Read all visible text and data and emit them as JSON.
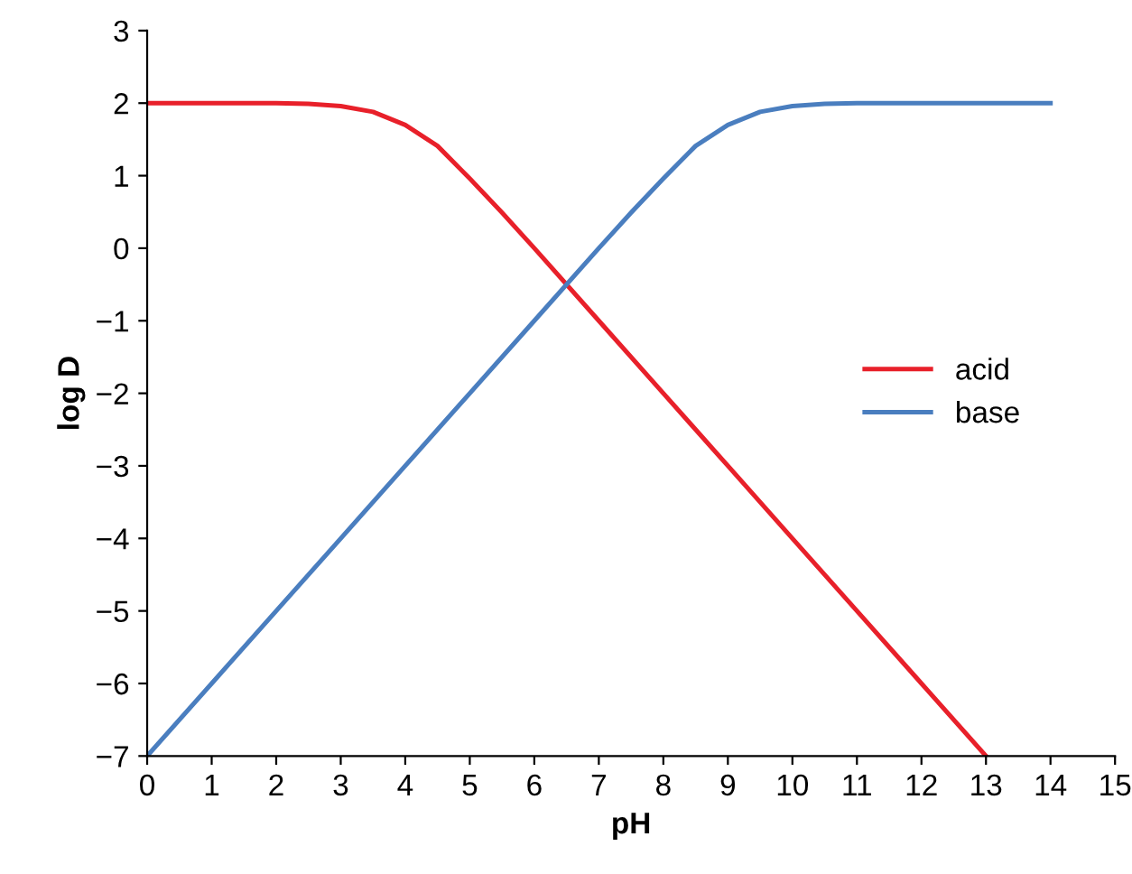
{
  "chart_data": {
    "type": "line",
    "xlabel": "pH",
    "ylabel": "log D",
    "series": [
      {
        "name": "acid",
        "color": "#e8202a",
        "x": [
          0,
          1,
          2,
          2.5,
          3,
          3.5,
          4,
          4.5,
          5,
          5.5,
          6,
          7,
          8,
          9,
          10,
          11,
          12,
          13
        ],
        "values": [
          2,
          2,
          2,
          1.99,
          1.96,
          1.88,
          1.7,
          1.41,
          0.96,
          0.49,
          0,
          -1,
          -2,
          -3,
          -4,
          -5,
          -6,
          -7
        ]
      },
      {
        "name": "base",
        "color": "#4a7ebf",
        "x": [
          0,
          1,
          2,
          3,
          4,
          5,
          6,
          7,
          7.5,
          8,
          8.5,
          9,
          9.5,
          10,
          10.5,
          11,
          12,
          13,
          14
        ],
        "values": [
          -7,
          -6,
          -5,
          -4,
          -3,
          -2,
          -1,
          0,
          0.49,
          0.96,
          1.41,
          1.7,
          1.88,
          1.96,
          1.99,
          2,
          2,
          2,
          2
        ]
      }
    ],
    "xlim": [
      0,
      15
    ],
    "xticks": [
      0,
      1,
      2,
      3,
      4,
      5,
      6,
      7,
      8,
      9,
      10,
      11,
      12,
      13,
      14,
      15
    ],
    "ylim": [
      -7,
      3
    ],
    "yticks": [
      {
        "value": -7,
        "label": "−7"
      },
      {
        "value": -6,
        "label": "−6"
      },
      {
        "value": -5,
        "label": "−5"
      },
      {
        "value": -4,
        "label": "−4"
      },
      {
        "value": -3,
        "label": "−3"
      },
      {
        "value": -2,
        "label": "−2"
      },
      {
        "value": -1,
        "label": "−1"
      },
      0,
      1,
      2,
      3
    ],
    "legend": "right",
    "grid": false
  }
}
